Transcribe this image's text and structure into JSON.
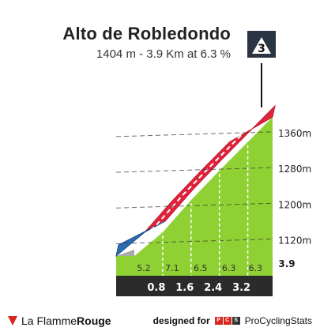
{
  "header": {
    "title": "Alto de Robledondo",
    "subtitle": "1404 m - 3.9 Km at 6.3 %",
    "category": "3"
  },
  "chart_data": {
    "type": "area",
    "title": "Alto de Robledondo",
    "subtitle": "1404 m - 3.9 Km at 6.3 %",
    "category": "3",
    "distance_axis": {
      "ticks": [
        0.8,
        1.6,
        2.4,
        3.2,
        3.9
      ],
      "range": [
        0,
        3.9
      ],
      "unit": "Km"
    },
    "altitude_axis": {
      "ticks": [
        "1120m",
        "1280m",
        "1200m",
        "1360m"
      ],
      "tick_values": [
        1120,
        1200,
        1280,
        1360
      ],
      "tick_labels": [
        "1120m",
        "1200m",
        "1280m",
        "1360m"
      ],
      "range": [
        1050,
        1404
      ]
    },
    "segments": [
      {
        "from_km": 0.0,
        "to_km": 0.8,
        "gradient": 5.2,
        "color": "#4aa33a"
      },
      {
        "from_km": 0.8,
        "to_km": 1.6,
        "gradient": 7.1,
        "color": "#4aa33a"
      },
      {
        "from_km": 1.6,
        "to_km": 2.4,
        "gradient": 6.5,
        "color": "#4aa33a"
      },
      {
        "from_km": 2.4,
        "to_km": 3.2,
        "gradient": 6.3,
        "color": "#4aa33a"
      },
      {
        "from_km": 3.2,
        "to_km": 3.9,
        "gradient": 6.3,
        "color": "#4aa33a"
      }
    ],
    "colors": {
      "profile_fill": "#8fd133",
      "road_climb": "#e0223c",
      "road_flat": "#2b6cb0",
      "base_band": "#2b2b2b",
      "side_wall": "#a9a9a9"
    },
    "grid": true
  },
  "footer": {
    "brand_left_1": "La Flamme",
    "brand_left_2": "Rouge",
    "designed_for": "designed for",
    "pcs_letters": [
      "P",
      "C",
      "S"
    ],
    "pcs_name": "ProCyclingStats"
  }
}
